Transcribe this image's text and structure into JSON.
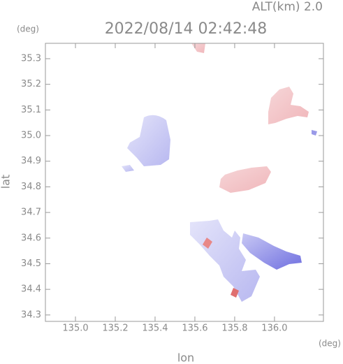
{
  "chart_data": {
    "type": "map",
    "title": "2022/08/14 02:42:48",
    "annotation": "ALT(km) 2.0",
    "x_label": "lon",
    "y_label": "lat",
    "x_unit": "(deg)",
    "y_unit": "(deg)",
    "xlim": [
      134.849,
      136.246
    ],
    "ylim": [
      34.275,
      35.36
    ],
    "xticks": [
      {
        "value": 135,
        "label": "135.0"
      },
      135.2,
      135.4,
      135.6,
      135.8,
      {
        "value": 136,
        "label": "136.0"
      }
    ],
    "yticks": [
      34.3,
      34.4,
      34.5,
      34.6,
      34.7,
      34.8,
      34.9,
      {
        "value": 35,
        "label": "35.0"
      },
      35.1,
      35.2,
      35.3
    ]
  }
}
